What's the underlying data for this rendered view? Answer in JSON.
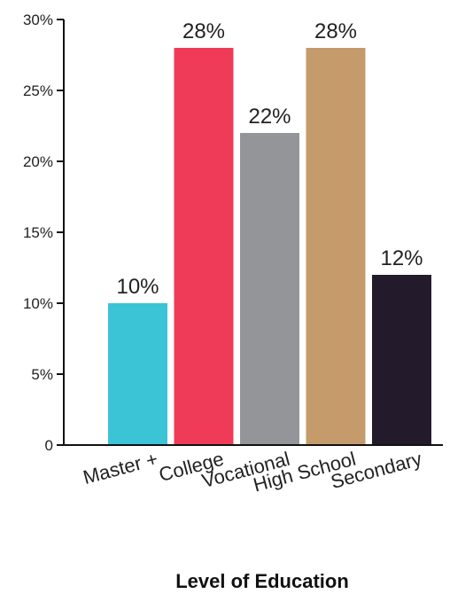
{
  "chart_data": {
    "type": "bar",
    "categories": [
      "Master +",
      "College",
      "Vocational",
      "High School",
      "Secondary"
    ],
    "values": [
      10,
      28,
      22,
      28,
      12
    ],
    "value_labels": [
      "10%",
      "28%",
      "22%",
      "28%",
      "12%"
    ],
    "colors": [
      "#3bc3d6",
      "#ef3b57",
      "#939598",
      "#c59b6b",
      "#231b2b"
    ],
    "xlabel": "Level of Education",
    "ylabel": "",
    "ylim": [
      0,
      30
    ],
    "yticks": [
      0,
      5,
      10,
      15,
      20,
      25,
      30
    ],
    "ytick_labels": [
      "0",
      "5%",
      "10%",
      "15%",
      "20%",
      "25%",
      "30%"
    ],
    "grid": false,
    "legend": "none"
  }
}
